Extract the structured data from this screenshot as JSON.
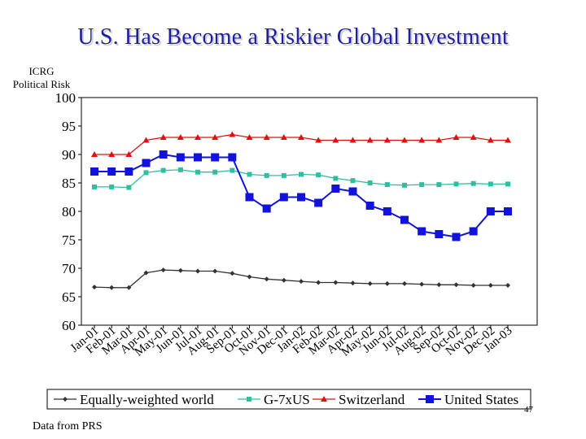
{
  "slide": {
    "title": "U.S. Has Become a Riskier Global Investment",
    "y_axis_label_line1": "ICRG",
    "y_axis_label_line2": "Political Risk",
    "source_note": "Data from PRS",
    "page_number": "47"
  },
  "chart_data": {
    "type": "line",
    "title": "U.S. Has Become a Riskier Global Investment",
    "xlabel": "",
    "ylabel": "ICRG Political Risk",
    "ylim": [
      60,
      100
    ],
    "yticks": [
      "60",
      "65",
      "70",
      "75",
      "80",
      "85",
      "90",
      "95",
      "100"
    ],
    "categories": [
      "Jan-01",
      "Feb-01",
      "Mar-01",
      "Apr-01",
      "May-01",
      "Jun-01",
      "Jul-01",
      "Aug-01",
      "Sep-01",
      "Oct-01",
      "Nov-01",
      "Dec-01",
      "Jan-02",
      "Feb-02",
      "Mar-02",
      "Apr-02",
      "May-02",
      "Jun-02",
      "Jul-02",
      "Aug-02",
      "Sep-02",
      "Oct-02",
      "Nov-02",
      "Dec-02",
      "Jan-03"
    ],
    "grid": false,
    "legend_position": "bottom",
    "series": [
      {
        "name": "Equally-weighted world",
        "color": "#333333",
        "marker": "diamond",
        "values": [
          66.7,
          66.6,
          66.6,
          69.2,
          69.7,
          69.6,
          69.5,
          69.5,
          69.1,
          68.5,
          68.1,
          67.9,
          67.7,
          67.5,
          67.5,
          67.4,
          67.3,
          67.3,
          67.3,
          67.2,
          67.1,
          67.1,
          67.0,
          67.0,
          67.0
        ]
      },
      {
        "name": "G-7xUS",
        "color": "#2fbfa0",
        "marker": "square",
        "values": [
          84.3,
          84.3,
          84.2,
          86.8,
          87.2,
          87.3,
          86.9,
          86.9,
          87.2,
          86.5,
          86.3,
          86.3,
          86.5,
          86.4,
          85.8,
          85.4,
          85.0,
          84.7,
          84.6,
          84.7,
          84.7,
          84.8,
          84.9,
          84.8,
          84.8
        ]
      },
      {
        "name": "Switzerland",
        "color": "#dd1111",
        "marker": "triangle",
        "values": [
          90.0,
          90.0,
          90.0,
          92.5,
          93.0,
          93.0,
          93.0,
          93.0,
          93.5,
          93.0,
          93.0,
          93.0,
          93.0,
          92.5,
          92.5,
          92.5,
          92.5,
          92.5,
          92.5,
          92.5,
          92.5,
          93.0,
          93.0,
          92.5,
          92.5
        ]
      },
      {
        "name": "United States",
        "color": "#1212dd",
        "marker": "square-large",
        "values": [
          87.0,
          87.0,
          87.0,
          88.5,
          90.0,
          89.5,
          89.5,
          89.5,
          89.5,
          82.5,
          80.5,
          82.5,
          82.5,
          81.5,
          84.0,
          83.5,
          81.0,
          80.0,
          78.5,
          76.5,
          76.0,
          75.5,
          76.5,
          80.0,
          80.0
        ]
      }
    ]
  }
}
